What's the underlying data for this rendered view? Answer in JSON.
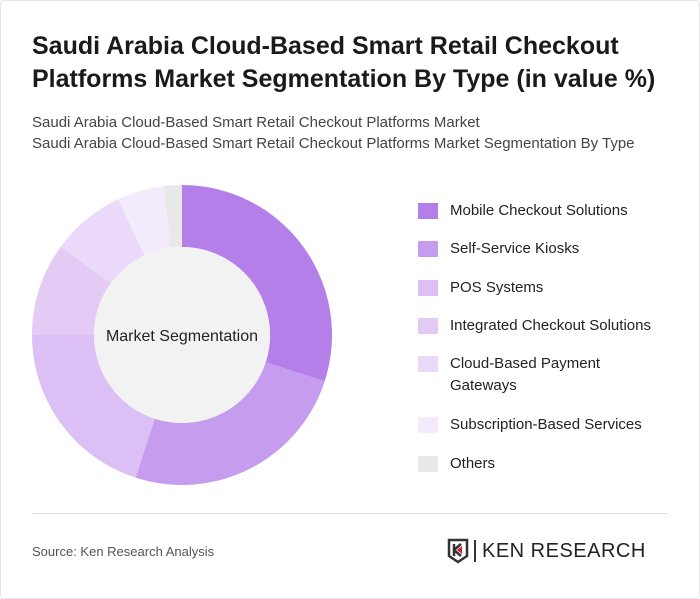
{
  "title": "Saudi Arabia Cloud-Based Smart Retail Checkout Platforms Market Segmentation By Type (in value %)",
  "subtitle_1": "Saudi Arabia Cloud-Based Smart Retail Checkout Platforms Market",
  "subtitle_2": "Saudi Arabia Cloud-Based Smart Retail Checkout Platforms Market Segmentation By Type",
  "source": "Source: Ken Research Analysis",
  "logo": "KEN RESEARCH",
  "chart_data": {
    "type": "pie",
    "donut": true,
    "center_label": "Market Segmentation",
    "legend_position": "right",
    "categories": [
      "Mobile Checkout Solutions",
      "Self-Service Kiosks",
      "POS Systems",
      "Integrated Checkout Solutions",
      "Cloud-Based Payment Gateways",
      "Subscription-Based Services",
      "Others"
    ],
    "values": [
      30,
      25,
      20,
      10,
      8,
      5,
      2
    ],
    "colors": [
      "#b57fea",
      "#c59cee",
      "#dbbff5",
      "#e3cbf6",
      "#ead9f9",
      "#f3ebfc",
      "#e8e8e8"
    ]
  }
}
